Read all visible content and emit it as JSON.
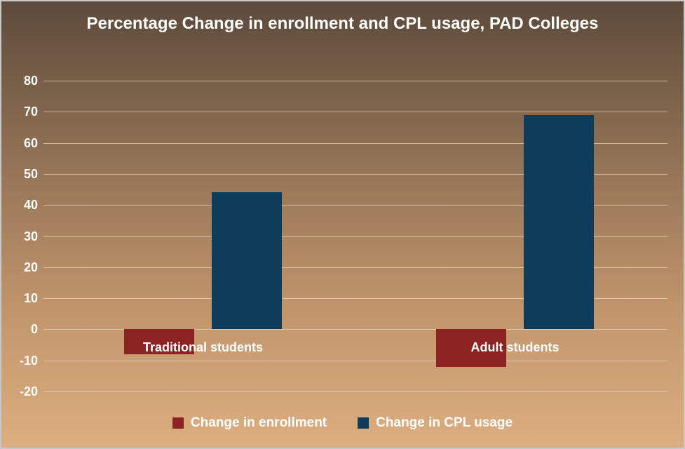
{
  "chart_data": {
    "type": "bar",
    "title": "Percentage Change in enrollment and CPL usage, PAD Colleges",
    "categories": [
      "Traditional students",
      "Adult students"
    ],
    "series": [
      {
        "name": "Change in enrollment",
        "color": "#8b2322",
        "values": [
          -8,
          -12
        ]
      },
      {
        "name": "Change in CPL usage",
        "color": "#0e3c5b",
        "values": [
          44,
          69
        ]
      }
    ],
    "xlabel": "",
    "ylabel": "",
    "ylim": [
      -20,
      80
    ],
    "yticks": [
      80,
      70,
      60,
      50,
      40,
      30,
      20,
      10,
      0,
      -10,
      -20
    ],
    "grid": true,
    "legend_position": "bottom"
  },
  "legend": {
    "items": [
      {
        "label": "Change in enrollment"
      },
      {
        "label": "Change in CPL usage"
      }
    ]
  },
  "colors": {
    "background_top": "#5d4a3b",
    "background_bottom": "#dcae80",
    "text": "#ffffff",
    "gridline": "#ece1cc",
    "enrollment_bar": "#8b2322",
    "cpl_bar": "#0e3c5b"
  }
}
